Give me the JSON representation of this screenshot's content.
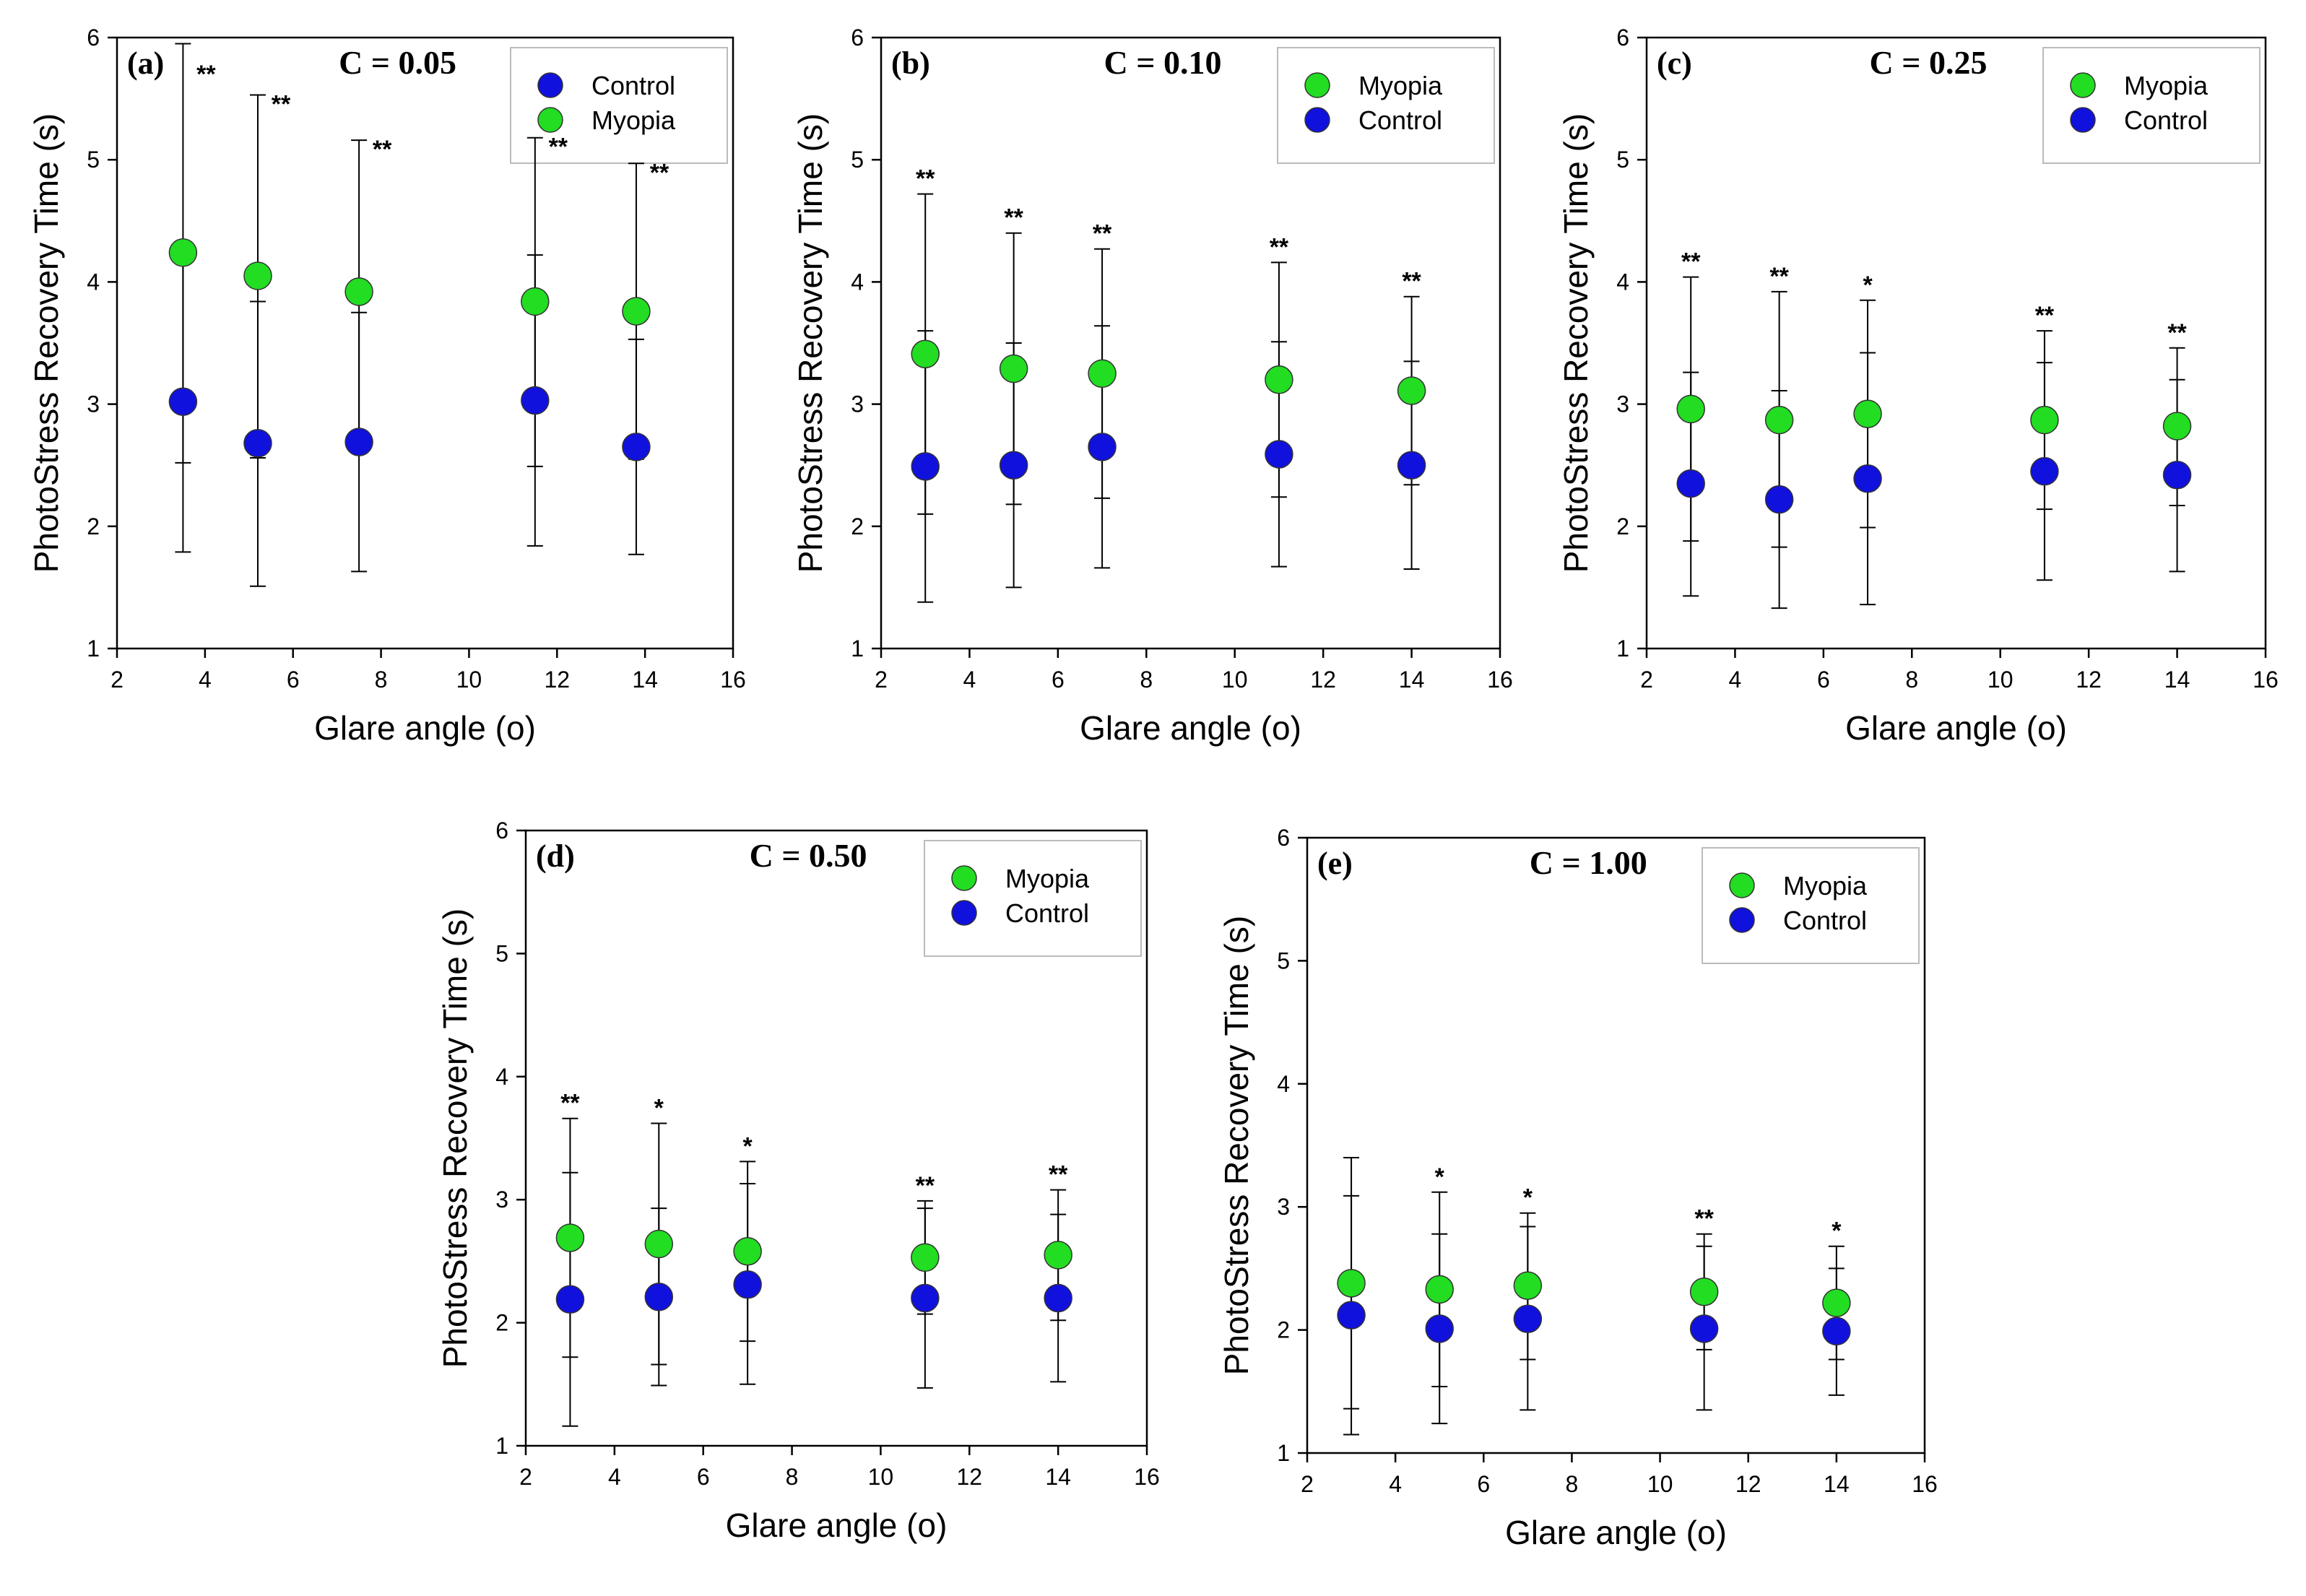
{
  "chart_data": [
    {
      "type": "scatter",
      "panel": "(a)",
      "title": "C = 0.05",
      "xlabel": "Glare angle (o)",
      "ylabel": "PhotoStress Recovery Time (s)",
      "xlim": [
        2,
        16
      ],
      "ylim": [
        1,
        6
      ],
      "xticks": [
        2,
        4,
        6,
        8,
        10,
        12,
        14,
        16
      ],
      "yticks": [
        1,
        2,
        3,
        4,
        5,
        6
      ],
      "legend": [
        "Control",
        "Myopia"
      ],
      "series": [
        {
          "name": "Myopia",
          "color": "#22dd22",
          "x": [
            3.5,
            5.2,
            7.5,
            11.5,
            13.8
          ],
          "y": [
            4.24,
            4.05,
            3.92,
            3.84,
            3.76
          ],
          "err_upper": [
            5.95,
            5.53,
            5.16,
            5.18,
            4.97
          ],
          "err_lower": [
            2.52,
            2.56,
            2.68,
            2.49,
            2.55
          ]
        },
        {
          "name": "Control",
          "color": "#1111dd",
          "x": [
            3.5,
            5.2,
            7.5,
            11.5,
            13.8
          ],
          "y": [
            3.02,
            2.68,
            2.69,
            3.03,
            2.65
          ],
          "err_upper": [
            4.26,
            3.84,
            3.75,
            4.22,
            3.53
          ],
          "err_lower": [
            1.79,
            1.51,
            1.63,
            1.84,
            1.77
          ]
        }
      ],
      "significance": [
        {
          "x": 3.5,
          "label": "**"
        },
        {
          "x": 5.2,
          "label": "**"
        },
        {
          "x": 7.5,
          "label": "**"
        },
        {
          "x": 11.5,
          "label": "**"
        },
        {
          "x": 13.8,
          "label": "**"
        }
      ]
    },
    {
      "type": "scatter",
      "panel": "(b)",
      "title": "C = 0.10",
      "xlabel": "Glare angle (o)",
      "ylabel": "PhotoStress Recovery Time (s)",
      "xlim": [
        2,
        16
      ],
      "ylim": [
        1,
        6
      ],
      "xticks": [
        2,
        4,
        6,
        8,
        10,
        12,
        14,
        16
      ],
      "yticks": [
        1,
        2,
        3,
        4,
        5,
        6
      ],
      "legend": [
        "Myopia",
        "Control"
      ],
      "series": [
        {
          "name": "Myopia",
          "color": "#22dd22",
          "x": [
            3,
            5,
            7,
            11,
            14
          ],
          "y": [
            3.41,
            3.29,
            3.25,
            3.2,
            3.11
          ],
          "err_upper": [
            4.72,
            4.4,
            4.27,
            4.16,
            3.88
          ],
          "err_lower": [
            2.1,
            2.18,
            2.23,
            2.24,
            2.34
          ]
        },
        {
          "name": "Control",
          "color": "#1111dd",
          "x": [
            3,
            5,
            7,
            11,
            14
          ],
          "y": [
            2.49,
            2.5,
            2.65,
            2.59,
            2.5
          ],
          "err_upper": [
            3.6,
            3.5,
            3.64,
            3.51,
            3.35
          ],
          "err_lower": [
            1.38,
            1.5,
            1.66,
            1.67,
            1.65
          ]
        }
      ],
      "significance": [
        {
          "x": 3,
          "label": "**"
        },
        {
          "x": 5,
          "label": "**"
        },
        {
          "x": 7,
          "label": "**"
        },
        {
          "x": 11,
          "label": "**"
        },
        {
          "x": 14,
          "label": "**"
        }
      ]
    },
    {
      "type": "scatter",
      "panel": "(c)",
      "title": "C = 0.25",
      "xlabel": "Glare angle (o)",
      "ylabel": "PhotoStress Recovery Time (s)",
      "xlim": [
        2,
        16
      ],
      "ylim": [
        1,
        6
      ],
      "xticks": [
        2,
        4,
        6,
        8,
        10,
        12,
        14,
        16
      ],
      "yticks": [
        1,
        2,
        3,
        4,
        5,
        6
      ],
      "legend": [
        "Myopia",
        "Control"
      ],
      "series": [
        {
          "name": "Myopia",
          "color": "#22dd22",
          "x": [
            3,
            5,
            7,
            11,
            14
          ],
          "y": [
            2.96,
            2.87,
            2.92,
            2.87,
            2.82
          ],
          "err_upper": [
            4.04,
            3.92,
            3.85,
            3.6,
            3.46
          ],
          "err_lower": [
            1.88,
            1.83,
            1.99,
            2.14,
            2.17
          ]
        },
        {
          "name": "Control",
          "color": "#1111dd",
          "x": [
            3,
            5,
            7,
            11,
            14
          ],
          "y": [
            2.35,
            2.22,
            2.39,
            2.45,
            2.42
          ],
          "err_upper": [
            3.26,
            3.11,
            3.42,
            3.34,
            3.2
          ],
          "err_lower": [
            1.43,
            1.33,
            1.36,
            1.56,
            1.63
          ]
        }
      ],
      "significance": [
        {
          "x": 3,
          "label": "**"
        },
        {
          "x": 5,
          "label": "**"
        },
        {
          "x": 7,
          "label": "*"
        },
        {
          "x": 11,
          "label": "**"
        },
        {
          "x": 14,
          "label": "**"
        }
      ]
    },
    {
      "type": "scatter",
      "panel": "(d)",
      "title": "C = 0.50",
      "xlabel": "Glare angle (o)",
      "ylabel": "PhotoStress Recovery Time (s)",
      "xlim": [
        2,
        16
      ],
      "ylim": [
        1,
        6
      ],
      "xticks": [
        2,
        4,
        6,
        8,
        10,
        12,
        14,
        16
      ],
      "yticks": [
        1,
        2,
        3,
        4,
        5,
        6
      ],
      "legend": [
        "Myopia",
        "Control"
      ],
      "series": [
        {
          "name": "Myopia",
          "color": "#22dd22",
          "x": [
            3,
            5,
            7,
            11,
            14
          ],
          "y": [
            2.69,
            2.64,
            2.58,
            2.53,
            2.55
          ],
          "err_upper": [
            3.66,
            3.62,
            3.31,
            2.99,
            3.08
          ],
          "err_lower": [
            1.72,
            1.66,
            1.85,
            2.07,
            2.02
          ]
        },
        {
          "name": "Control",
          "color": "#1111dd",
          "x": [
            3,
            5,
            7,
            11,
            14
          ],
          "y": [
            2.19,
            2.21,
            2.31,
            2.2,
            2.2
          ],
          "err_upper": [
            3.22,
            2.93,
            3.13,
            2.93,
            2.88
          ],
          "err_lower": [
            1.16,
            1.49,
            1.5,
            1.47,
            1.52
          ]
        }
      ],
      "significance": [
        {
          "x": 3,
          "label": "**"
        },
        {
          "x": 5,
          "label": "*"
        },
        {
          "x": 7,
          "label": "*"
        },
        {
          "x": 11,
          "label": "**"
        },
        {
          "x": 14,
          "label": "**"
        }
      ]
    },
    {
      "type": "scatter",
      "panel": "(e)",
      "title": "C = 1.00",
      "xlabel": "Glare angle (o)",
      "ylabel": "PhotoStress Recovery Time (s)",
      "xlim": [
        2,
        16
      ],
      "ylim": [
        1,
        6
      ],
      "xticks": [
        2,
        4,
        6,
        8,
        10,
        12,
        14,
        16
      ],
      "yticks": [
        1,
        2,
        3,
        4,
        5,
        6
      ],
      "legend": [
        "Myopia",
        "Control"
      ],
      "series": [
        {
          "name": "Myopia",
          "color": "#22dd22",
          "x": [
            3,
            5,
            7,
            11,
            14
          ],
          "y": [
            2.38,
            2.33,
            2.36,
            2.31,
            2.22
          ],
          "err_upper": [
            3.4,
            3.12,
            2.95,
            2.78,
            2.68
          ],
          "err_lower": [
            1.36,
            1.54,
            1.76,
            1.84,
            1.76
          ]
        },
        {
          "name": "Control",
          "color": "#1111dd",
          "x": [
            3,
            5,
            7,
            11,
            14
          ],
          "y": [
            2.12,
            2.01,
            2.09,
            2.01,
            1.99
          ],
          "err_upper": [
            3.09,
            2.78,
            2.84,
            2.68,
            2.5
          ],
          "err_lower": [
            1.15,
            1.24,
            1.35,
            1.35,
            1.47
          ]
        }
      ],
      "significance": [
        {
          "x": 5,
          "label": "*"
        },
        {
          "x": 7,
          "label": "*"
        },
        {
          "x": 11,
          "label": "**"
        },
        {
          "x": 14,
          "label": "*"
        }
      ]
    }
  ]
}
